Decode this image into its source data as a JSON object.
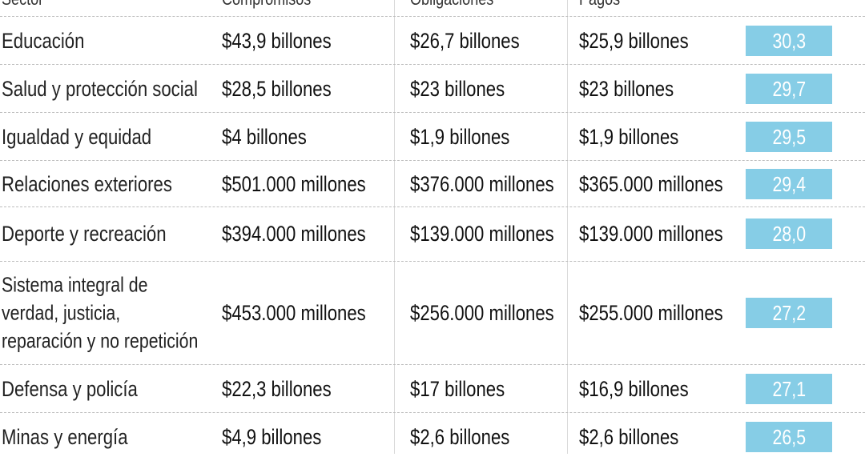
{
  "header": {
    "sector": "Sector",
    "compromisos": "Compromisos",
    "obligaciones": "Obligaciones",
    "pagos": "Pagos"
  },
  "rows": [
    {
      "sector": "Educación",
      "compromisos": "$43,9 billones",
      "obligaciones": "$26,7 billones",
      "pagos": "$25,9 billones",
      "pct": "30,3"
    },
    {
      "sector": "Salud y protección social",
      "compromisos": "$28,5 billones",
      "obligaciones": "$23 billones",
      "pagos": "$23 billones",
      "pct": "29,7"
    },
    {
      "sector": "Igualdad y equidad",
      "compromisos": "$4 billones",
      "obligaciones": "$1,9 billones",
      "pagos": "$1,9 billones",
      "pct": "29,5"
    },
    {
      "sector": "Relaciones exteriores",
      "compromisos": "$501.000 millones",
      "obligaciones": "$376.000 millones",
      "pagos": "$365.000 millones",
      "pct": "29,4"
    },
    {
      "sector": "Deporte y recreación",
      "compromisos": "$394.000 millones",
      "obligaciones": "$139.000 millones",
      "pagos": "$139.000 millones",
      "pct": "28,0"
    },
    {
      "sector": "Sistema integral de verdad, justicia, reparación y no repetición",
      "compromisos": "$453.000 millones",
      "obligaciones": "$256.000 millones",
      "pagos": "$255.000 millones",
      "pct": "27,2"
    },
    {
      "sector": "Defensa y policía",
      "compromisos": "$22,3 billones",
      "obligaciones": "$17 billones",
      "pagos": "$16,9 billones",
      "pct": "27,1"
    },
    {
      "sector": "Minas y energía",
      "compromisos": "$4,9 billones",
      "obligaciones": "$2,6 billones",
      "pagos": "$2,6 billones",
      "pct": "26,5"
    }
  ],
  "colors": {
    "badge": "#86cde6",
    "separator": "#bdbdbd"
  }
}
